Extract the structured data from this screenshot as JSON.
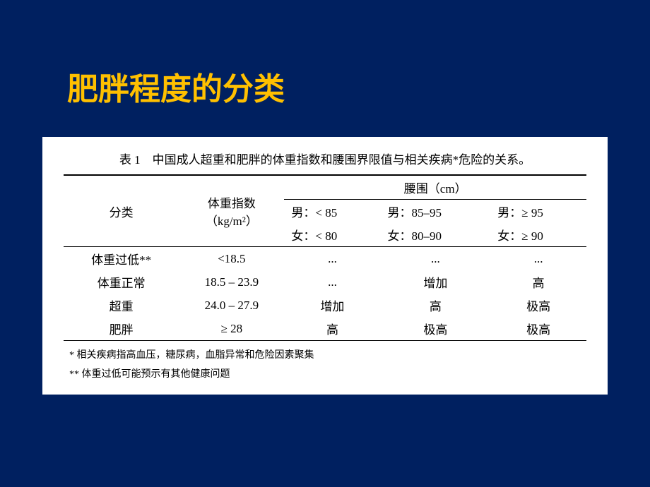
{
  "slide": {
    "title": "肥胖程度的分类",
    "background_color": "#002060",
    "title_color": "#ffc000",
    "title_fontsize": 44
  },
  "table": {
    "title": "表 1　中国成人超重和肥胖的体重指数和腰围界限值与相关疾病*危险的关系。",
    "headers": {
      "category": "分类",
      "bmi": "体重指数",
      "bmi_unit": "（kg/m²）",
      "waist_header": "腰围（cm）",
      "waist_cols": [
        {
          "male": "男：< 85",
          "female": "女：< 80"
        },
        {
          "male": "男：85–95",
          "female": "女：80–90"
        },
        {
          "male": "男：≥ 95",
          "female": "女：≥ 90"
        }
      ]
    },
    "rows": [
      {
        "category": "体重过低**",
        "bmi": "<18.5",
        "c1": "...",
        "c2": "...",
        "c3": "..."
      },
      {
        "category": "体重正常",
        "bmi": "18.5 – 23.9",
        "c1": "...",
        "c2": "增加",
        "c3": "高"
      },
      {
        "category": "超重",
        "bmi": "24.0 – 27.9",
        "c1": "增加",
        "c2": "高",
        "c3": "极高"
      },
      {
        "category": "肥胖",
        "bmi": "≥ 28",
        "c1": "高",
        "c2": "极高",
        "c3": "极高"
      }
    ],
    "footnotes": [
      "* 相关疾病指高血压，糖尿病，血脂异常和危险因素聚集",
      "** 体重过低可能预示有其他健康问题"
    ],
    "background_color": "#ffffff",
    "text_color": "#000000",
    "border_color": "#000000",
    "fontsize": 17,
    "footnote_fontsize": 14
  }
}
